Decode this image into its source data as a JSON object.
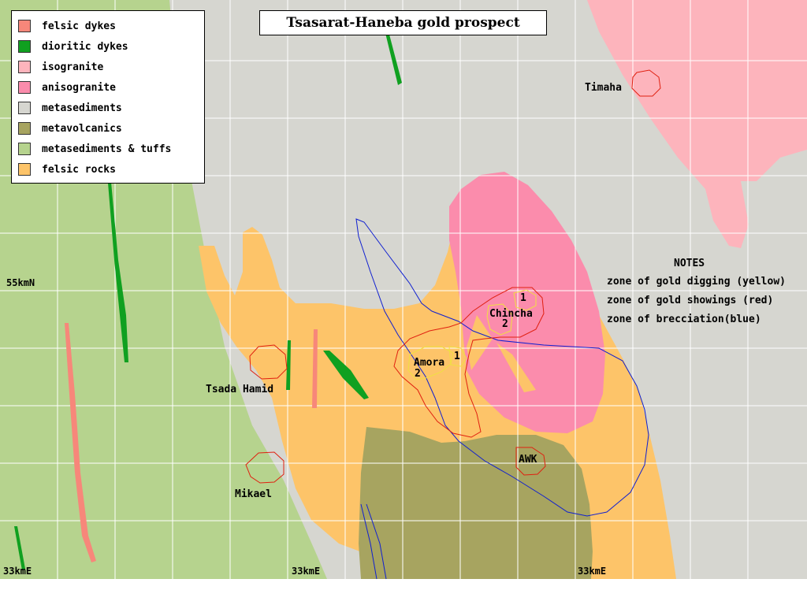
{
  "map": {
    "title": "Tsasarat-Haneba gold prospect",
    "legend": [
      {
        "label": "felsic dykes",
        "color": "#f7877a"
      },
      {
        "label": "dioritic dykes",
        "color": "#10a020"
      },
      {
        "label": "isogranite",
        "color": "#fdb4bc"
      },
      {
        "label": "anisogranite",
        "color": "#fb8cac"
      },
      {
        "label": "metasediments",
        "color": "#d6d6d0"
      },
      {
        "label": "metavolcanics",
        "color": "#a7a460"
      },
      {
        "label": "metasediments & tuffs",
        "color": "#b6d38e"
      },
      {
        "label": "felsic rocks",
        "color": "#fdc469"
      }
    ],
    "notes": {
      "title": "NOTES",
      "items": [
        "zone of gold digging (yellow)",
        "zone of gold showings (red)",
        "zone of brecciation(blue)"
      ]
    },
    "places": {
      "timaha": "Timaha",
      "chincha": "Chincha",
      "chincha_1": "1",
      "chincha_2": "2",
      "amora": "Amora",
      "amora_1": "1",
      "amora_2": "2",
      "tsada_hamid": "Tsada Hamid",
      "awk": "AWK",
      "mikael": "Mikael"
    },
    "grid_labels": {
      "north": "55kmN",
      "east_1": "33kmE",
      "east_2": "33kmE",
      "east_3": "33kmE"
    },
    "colors": {
      "grid": "#ffffff",
      "gold_digging": "#f0e040",
      "gold_showings": "#e02010",
      "brecciation": "#1020d0"
    }
  }
}
